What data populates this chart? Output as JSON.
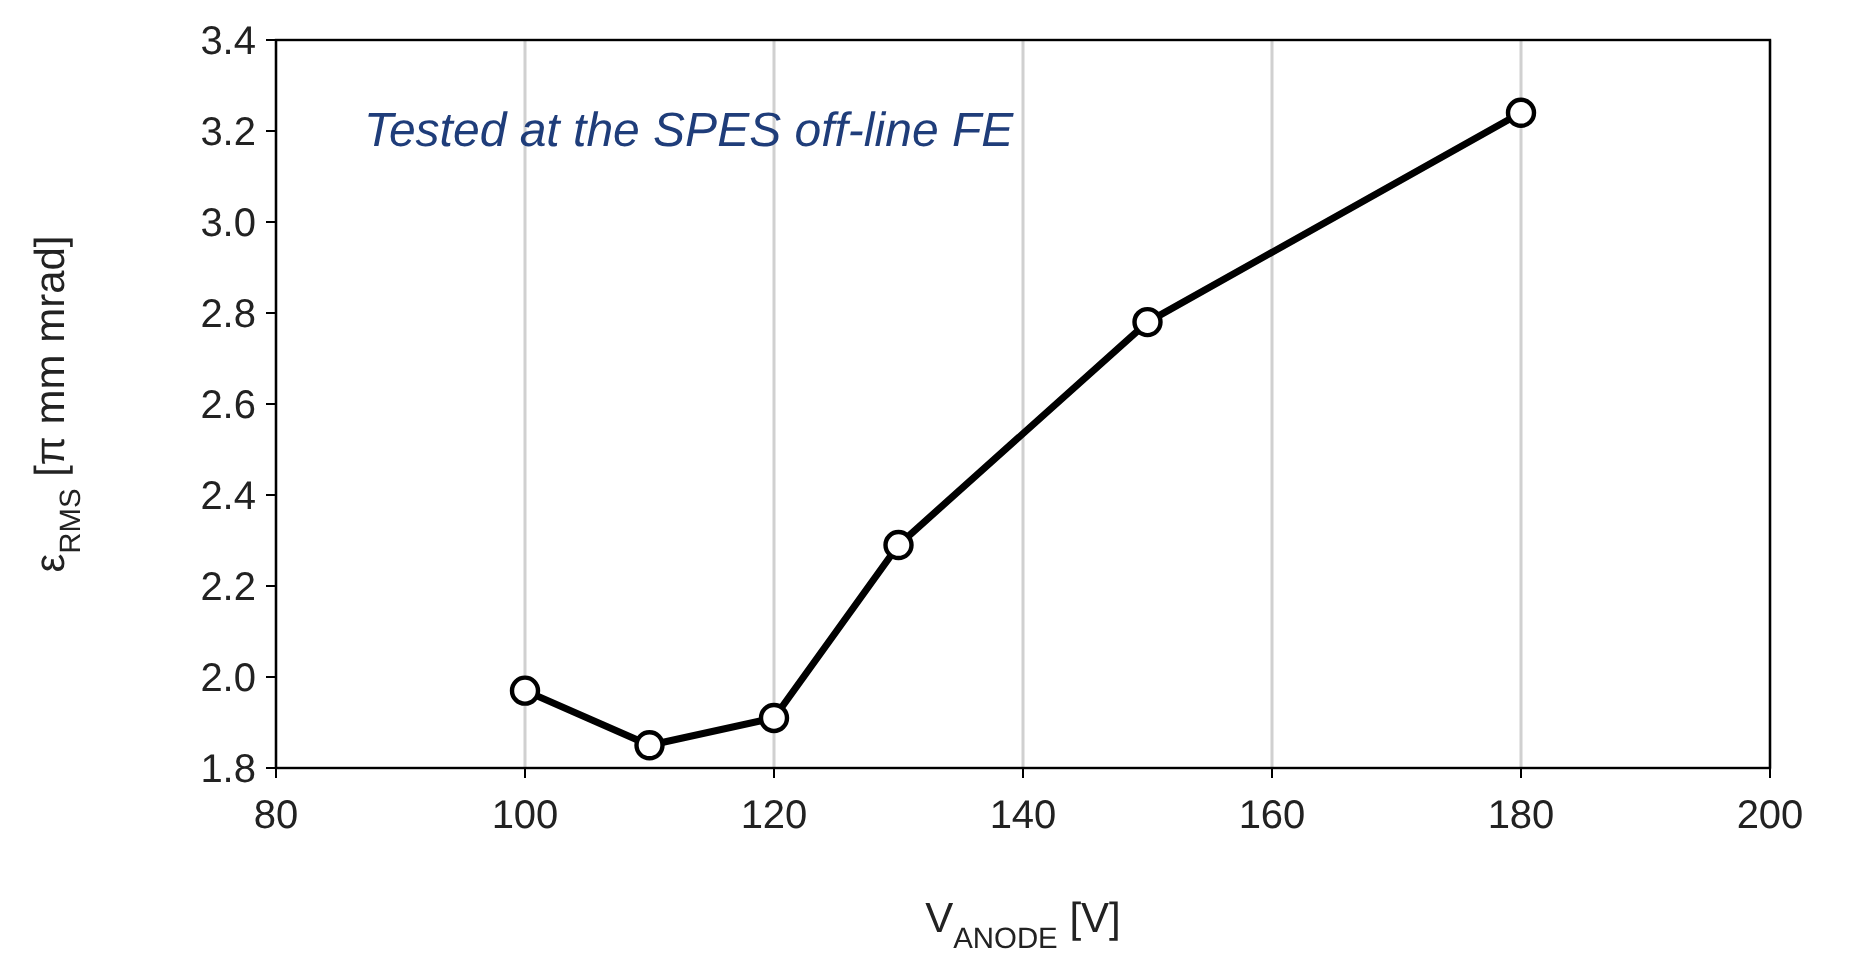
{
  "chart_data": {
    "type": "line",
    "xlabel": "V$_{ANODE}$ [V]",
    "ylabel": "ε$_{RMS}$ [π mm mrad]",
    "annotations": [
      "Tested at the SPES off-line FE"
    ],
    "x": [
      100,
      110,
      120,
      130,
      150,
      180
    ],
    "series": [
      {
        "color": "#000000",
        "values": [
          1.97,
          1.85,
          1.91,
          2.29,
          2.78,
          3.24
        ]
      }
    ],
    "xlim": [
      80,
      200
    ],
    "xticks": [
      80,
      100,
      120,
      140,
      160,
      180,
      200
    ],
    "ylim": [
      1.8,
      3.4
    ],
    "yticks": [
      {
        "value": 1.8,
        "label": "1.8"
      },
      {
        "value": 2.0,
        "label": "2.0"
      },
      {
        "value": 2.2,
        "label": "2.2"
      },
      {
        "value": 2.4,
        "label": "2.4"
      },
      {
        "value": 2.6,
        "label": "2.6"
      },
      {
        "value": 2.8,
        "label": "2.8"
      },
      {
        "value": 3.0,
        "label": "3.0"
      },
      {
        "value": 3.2,
        "label": "3.2"
      },
      {
        "value": 3.4,
        "label": "3.4"
      }
    ],
    "grid": "x",
    "marker": "circle",
    "line_style": "solid"
  }
}
